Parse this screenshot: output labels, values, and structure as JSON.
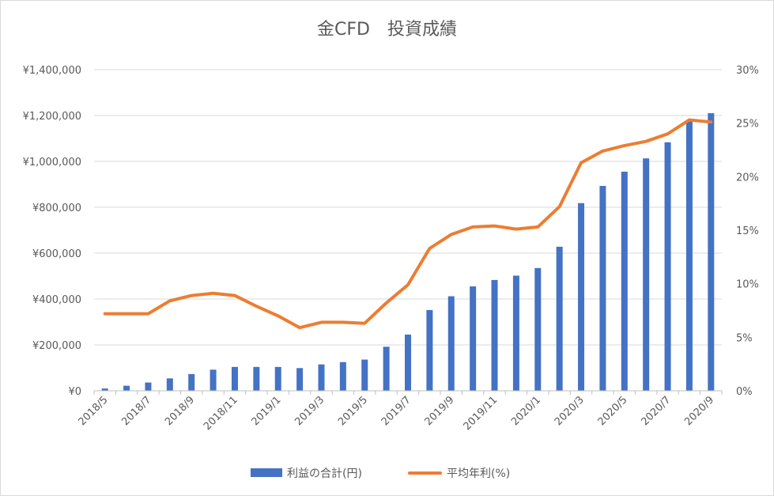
{
  "chart_data": {
    "type": "bar+line",
    "title": "金CFD　投資成績",
    "categories": [
      "2018/5",
      "2018/6",
      "2018/7",
      "2018/8",
      "2018/9",
      "2018/10",
      "2018/11",
      "2018/12",
      "2019/1",
      "2019/2",
      "2019/3",
      "2019/4",
      "2019/5",
      "2019/6",
      "2019/7",
      "2019/8",
      "2019/9",
      "2019/10",
      "2019/11",
      "2019/12",
      "2020/1",
      "2020/2",
      "2020/3",
      "2020/4",
      "2020/5",
      "2020/6",
      "2020/7",
      "2020/8",
      "2020/9"
    ],
    "x_tick_labels": [
      "2018/5",
      "2018/7",
      "2018/9",
      "2018/11",
      "2019/1",
      "2019/3",
      "2019/5",
      "2019/7",
      "2019/9",
      "2019/11",
      "2020/1",
      "2020/3",
      "2020/5",
      "2020/7",
      "2020/9"
    ],
    "y_left": {
      "ticks": [
        "¥0",
        "¥200,000",
        "¥400,000",
        "¥600,000",
        "¥800,000",
        "¥1,000,000",
        "¥1,200,000",
        "¥1,400,000"
      ],
      "ylim": [
        0,
        1400000
      ]
    },
    "y_right": {
      "ticks": [
        "0%",
        "5%",
        "10%",
        "15%",
        "20%",
        "25%",
        "30%"
      ],
      "ylim": [
        0,
        30
      ]
    },
    "series": [
      {
        "name": "利益の合計(円)",
        "type": "bar",
        "axis": "left",
        "color": "#4472C4",
        "values": [
          10000,
          22000,
          36000,
          54000,
          73000,
          92000,
          104000,
          104000,
          104000,
          99000,
          115000,
          125000,
          136000,
          192000,
          245000,
          352000,
          412000,
          455000,
          483000,
          502000,
          535000,
          628000,
          818000,
          893000,
          955000,
          1013000,
          1083000,
          1180000,
          1210000
        ]
      },
      {
        "name": "平均年利(%)",
        "type": "line",
        "axis": "right",
        "color": "#ED7D31",
        "values": [
          7.2,
          7.2,
          7.2,
          8.4,
          8.9,
          9.1,
          8.9,
          7.9,
          7.0,
          5.9,
          6.4,
          6.4,
          6.3,
          8.2,
          9.9,
          13.3,
          14.6,
          15.3,
          15.4,
          15.1,
          15.3,
          17.2,
          21.3,
          22.4,
          22.9,
          23.3,
          24.0,
          25.3,
          25.1
        ]
      }
    ],
    "legend": "bottom",
    "grid": true
  }
}
